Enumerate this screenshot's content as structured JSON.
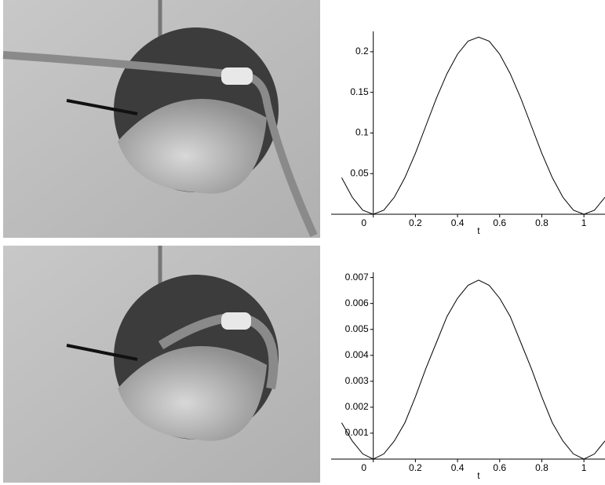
{
  "chart_data": [
    {
      "type": "line",
      "x_label": "t",
      "x": [
        -0.15,
        -0.1,
        -0.05,
        0,
        0.05,
        0.1,
        0.15,
        0.2,
        0.25,
        0.3,
        0.35,
        0.4,
        0.45,
        0.5,
        0.55,
        0.6,
        0.65,
        0.7,
        0.75,
        0.8,
        0.85,
        0.9,
        0.95,
        1.0,
        1.05,
        1.1
      ],
      "series": [
        {
          "color": "#000000",
          "values": [
            0.045,
            0.021,
            0.005,
            0,
            0.005,
            0.021,
            0.045,
            0.075,
            0.109,
            0.143,
            0.173,
            0.197,
            0.213,
            0.218,
            0.213,
            0.197,
            0.173,
            0.143,
            0.109,
            0.075,
            0.045,
            0.021,
            0.005,
            0,
            0.005,
            0.021
          ]
        }
      ],
      "xlim": [
        -0.2,
        1.1
      ],
      "xticks": [
        0,
        0.2,
        0.4,
        0.6,
        0.8,
        1
      ],
      "ylim": [
        0,
        0.225
      ],
      "yticks": [
        0.05,
        0.1,
        0.15,
        0.2
      ]
    },
    {
      "type": "line",
      "x_label": "t",
      "x": [
        -0.15,
        -0.1,
        -0.05,
        0,
        0.05,
        0.1,
        0.15,
        0.2,
        0.25,
        0.3,
        0.35,
        0.4,
        0.45,
        0.5,
        0.55,
        0.6,
        0.65,
        0.7,
        0.75,
        0.8,
        0.85,
        0.9,
        0.95,
        1.0,
        1.05,
        1.1
      ],
      "series": [
        {
          "color": "#000000",
          "values": [
            0.0014,
            0.0007,
            0.0002,
            0,
            0.0002,
            0.0007,
            0.0014,
            0.0024,
            0.0035,
            0.0045,
            0.0055,
            0.0062,
            0.0067,
            0.0069,
            0.0067,
            0.0062,
            0.0055,
            0.0045,
            0.0035,
            0.0024,
            0.0014,
            0.0007,
            0.0002,
            0,
            0.0002,
            0.0007
          ]
        }
      ],
      "xlim": [
        -0.2,
        1.1
      ],
      "xticks": [
        0,
        0.2,
        0.4,
        0.6,
        0.8,
        1
      ],
      "ylim": [
        0,
        0.0072
      ],
      "yticks": [
        0.001,
        0.002,
        0.003,
        0.004,
        0.005,
        0.006,
        0.007
      ]
    }
  ]
}
